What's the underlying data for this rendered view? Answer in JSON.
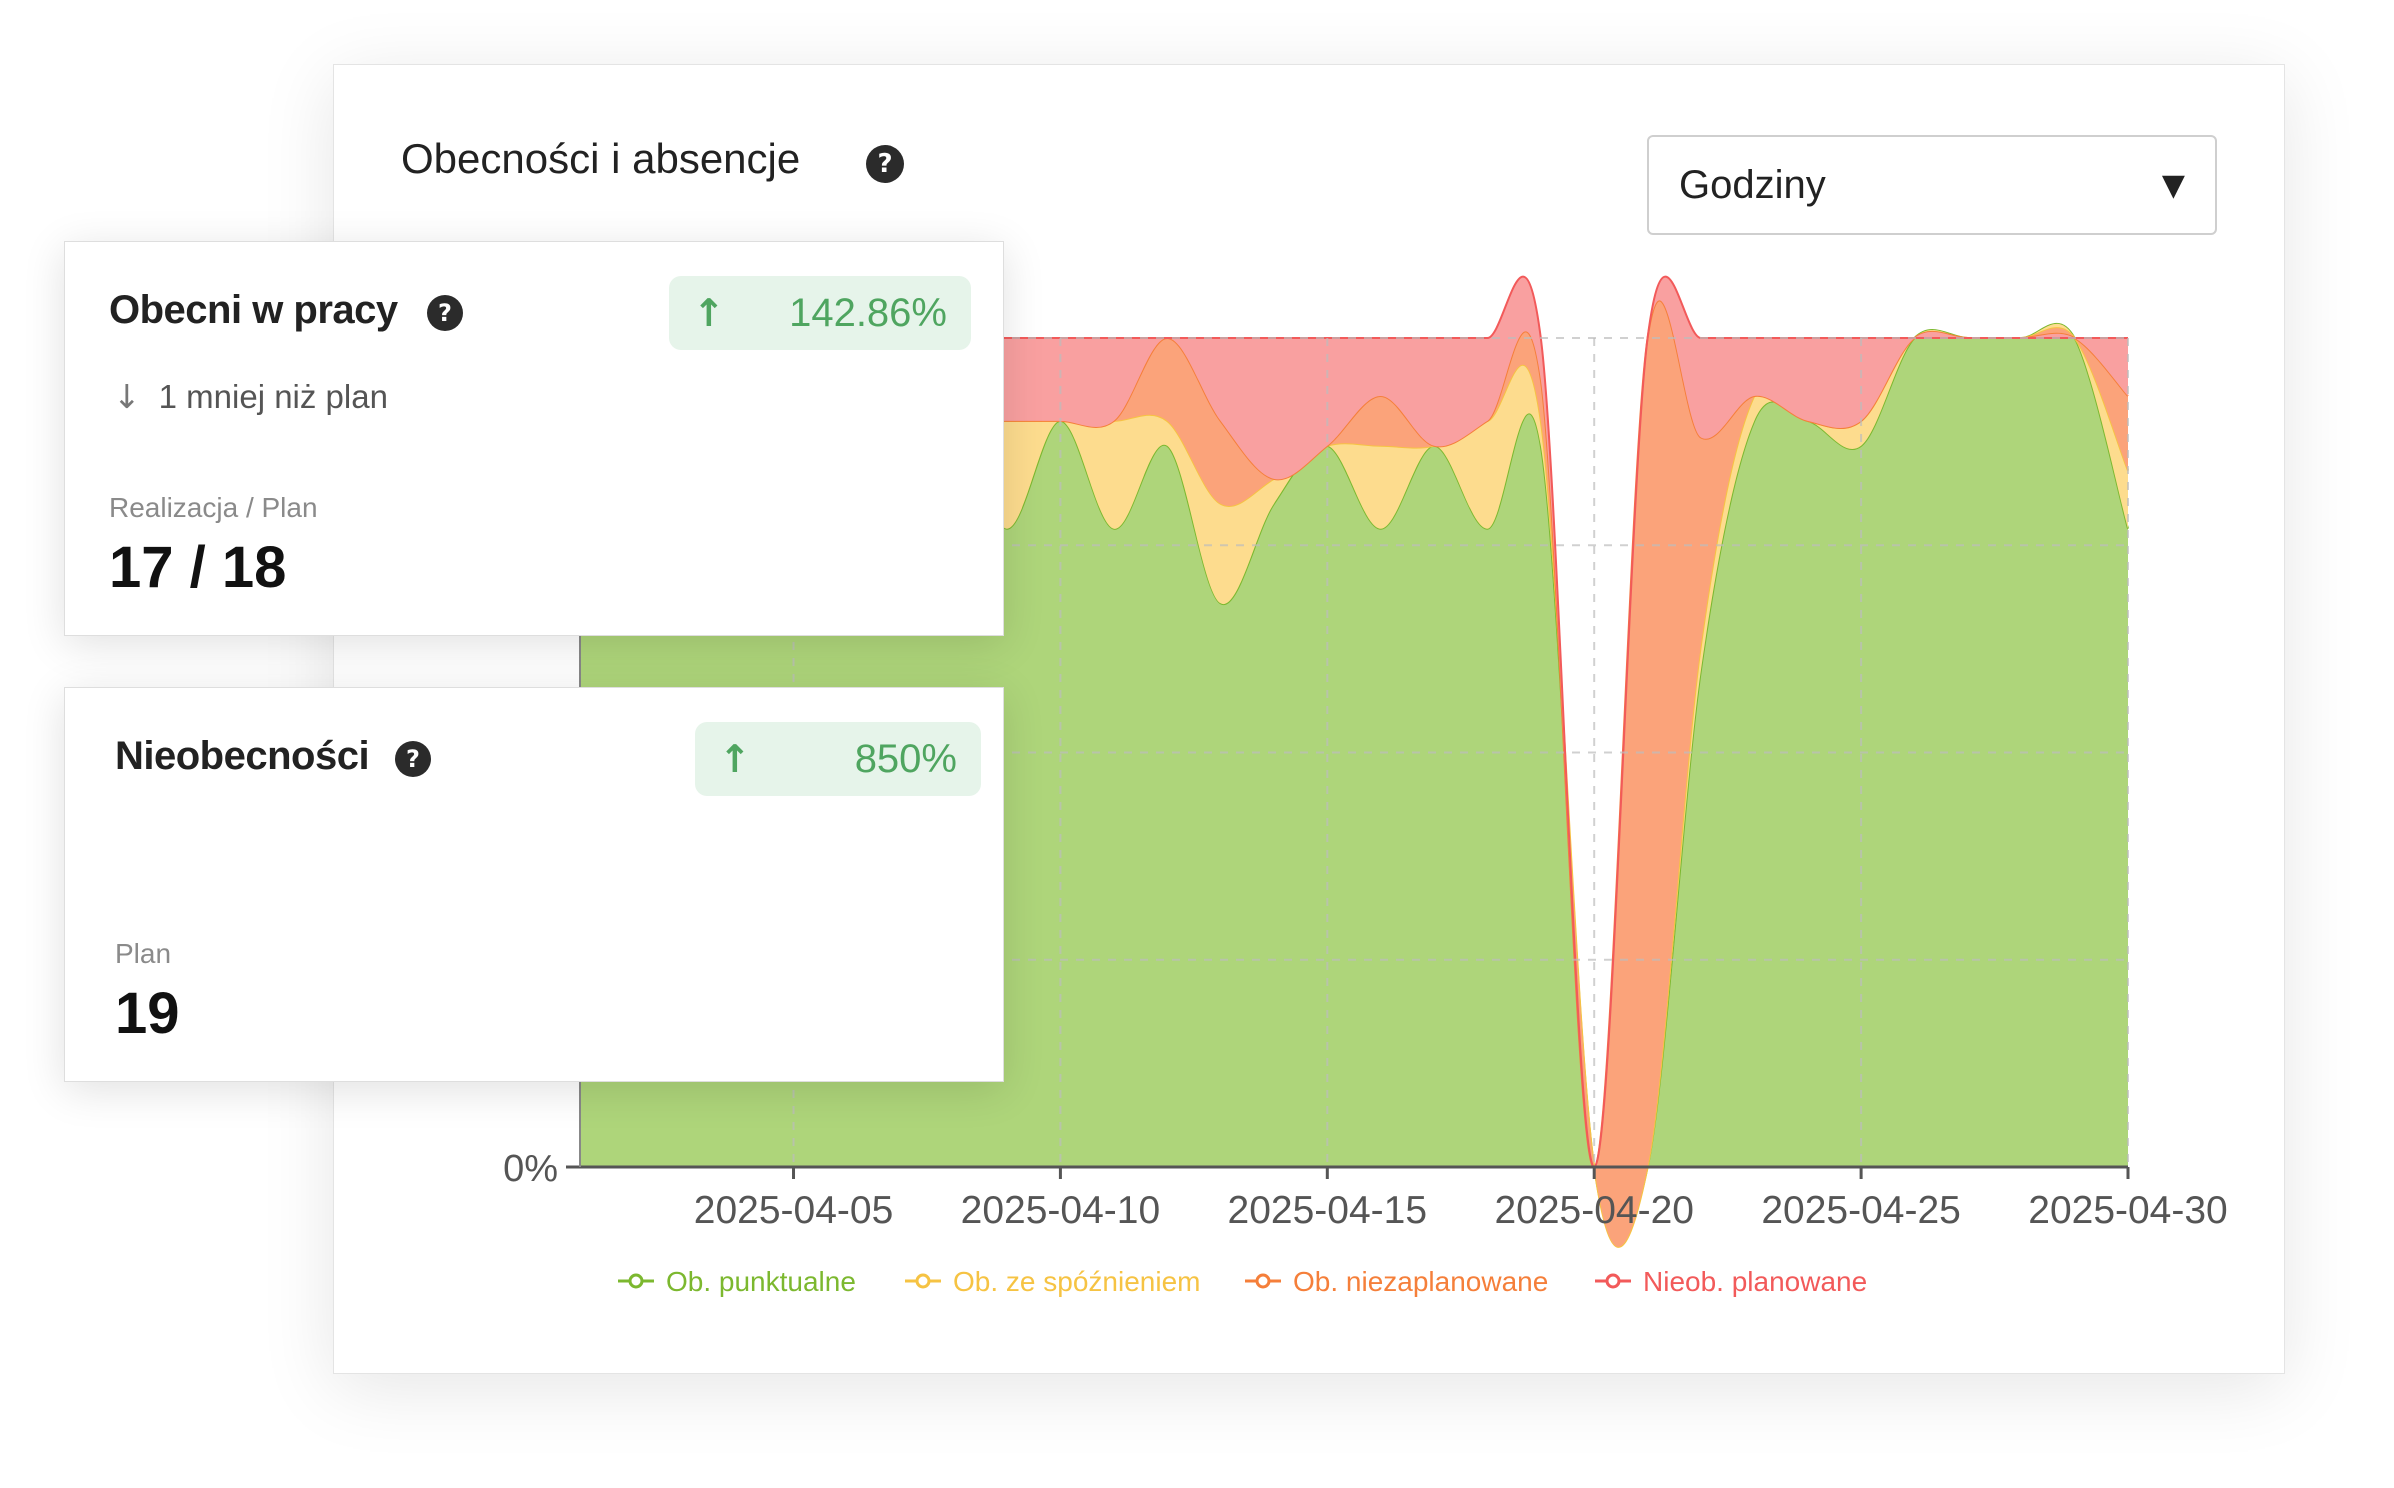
{
  "panel": {
    "title": "Obecności i absencje",
    "select": {
      "value": "Godziny"
    }
  },
  "card_present": {
    "title": "Obecni w pracy",
    "badge": "142.86%",
    "note": "1 mniej niż plan",
    "metric_label": "Realizacja / Plan",
    "metric_value": "17 / 18"
  },
  "card_absent": {
    "title": "Nieobecności",
    "badge": "850%",
    "metric_label": "Plan",
    "metric_value": "19"
  },
  "chart_data": {
    "type": "area",
    "stacked": true,
    "y_tick_visible": "0%",
    "x": [
      "2025-04-01",
      "2025-04-02",
      "2025-04-03",
      "2025-04-04",
      "2025-04-05",
      "2025-04-06",
      "2025-04-07",
      "2025-04-08",
      "2025-04-09",
      "2025-04-10",
      "2025-04-11",
      "2025-04-12",
      "2025-04-13",
      "2025-04-14",
      "2025-04-15",
      "2025-04-16",
      "2025-04-17",
      "2025-04-18",
      "2025-04-19",
      "2025-04-20",
      "2025-04-21",
      "2025-04-22",
      "2025-04-23",
      "2025-04-24",
      "2025-04-25",
      "2025-04-26",
      "2025-04-27",
      "2025-04-28",
      "2025-04-29",
      "2025-04-30"
    ],
    "x_ticks": [
      "2025-04-05",
      "2025-04-10",
      "2025-04-15",
      "2025-04-20",
      "2025-04-25",
      "2025-04-30"
    ],
    "ylim": [
      0,
      100
    ],
    "grid": true,
    "legend_position": "bottom",
    "series": [
      {
        "name": "Ob. punktualne",
        "color": "#7cb82f",
        "fill": "#aed57a",
        "values": [
          70,
          75,
          72,
          80,
          73,
          70,
          68,
          90,
          77,
          90,
          77,
          87,
          68,
          80,
          87,
          77,
          87,
          77,
          87,
          0,
          0,
          60,
          90,
          90,
          87,
          100,
          100,
          100,
          100,
          77
        ]
      },
      {
        "name": "Ob. ze spóźnieniem",
        "color": "#f6c343",
        "fill": "#fddc8e",
        "values": [
          12,
          8,
          10,
          4,
          9,
          12,
          12,
          0,
          13,
          0,
          13,
          3,
          12,
          3,
          0,
          10,
          0,
          13,
          3,
          0,
          0,
          3,
          3,
          0,
          3,
          0,
          0,
          0,
          0,
          7
        ]
      },
      {
        "name": "Ob. niezaplanowane",
        "color": "#f57f3a",
        "fill": "#fba37a",
        "values": [
          5,
          5,
          4,
          4,
          5,
          5,
          7,
          0,
          0,
          0,
          0,
          10,
          10,
          0,
          0,
          6,
          0,
          0,
          5,
          0,
          100,
          25,
          0,
          0,
          0,
          0,
          0,
          0,
          0,
          9
        ]
      },
      {
        "name": "Nieob. planowane",
        "color": "#f25a5a",
        "fill": "#f9a0a0",
        "values": [
          13,
          12,
          14,
          12,
          13,
          13,
          13,
          10,
          10,
          10,
          10,
          0,
          10,
          17,
          13,
          7,
          13,
          10,
          5,
          0,
          0,
          12,
          7,
          10,
          10,
          0,
          0,
          0,
          0,
          7
        ]
      }
    ]
  }
}
